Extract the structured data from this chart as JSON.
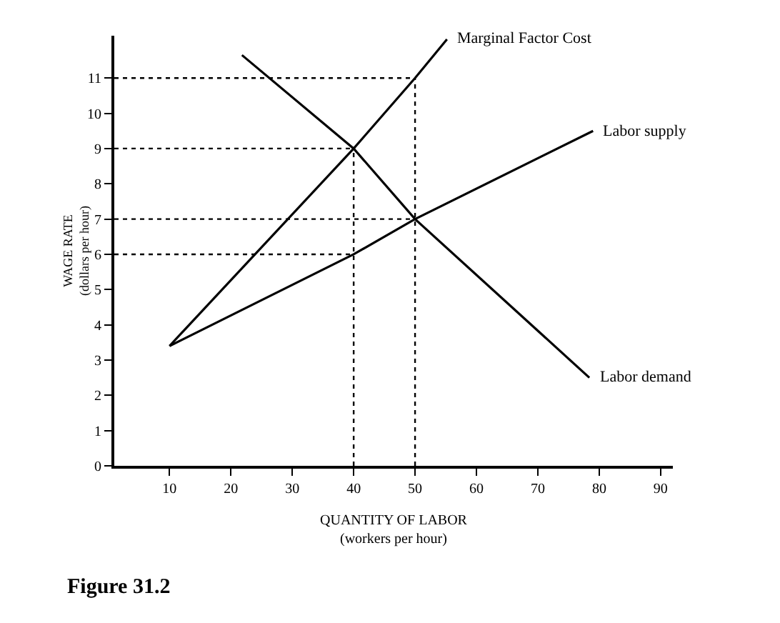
{
  "chart_data": {
    "type": "line",
    "xlabel": "QUANTITY OF LABOR\n(workers per hour)",
    "ylabel": "WAGE RATE\n(dollars per hour)",
    "annotations": [
      "Figure 31.2"
    ],
    "xlim": [
      1,
      92
    ],
    "xticks": [
      10,
      20,
      30,
      40,
      50,
      60,
      70,
      80,
      90
    ],
    "ylim": [
      0,
      12.2
    ],
    "yticks": [
      0,
      1,
      2,
      3,
      4,
      5,
      6,
      7,
      8,
      9,
      10,
      11
    ],
    "grid": false,
    "legend": false,
    "marker": "none",
    "line_style": "solid",
    "series": [
      {
        "name": "Marginal Factor Cost",
        "color": "#000000",
        "x": [
          10,
          40,
          50,
          55.2
        ],
        "values": [
          3.4,
          9,
          11,
          12.1
        ]
      },
      {
        "name": "Labor supply",
        "color": "#000000",
        "x": [
          10,
          40,
          50,
          79
        ],
        "values": [
          3.4,
          6,
          7,
          9.5
        ]
      },
      {
        "name": "Labor demand",
        "color": "#000000",
        "x": [
          21.8,
          40,
          50,
          78.4
        ],
        "values": [
          11.65,
          9,
          7,
          2.5
        ]
      },
      {
        "color": "#000000",
        "line_style": "dotted",
        "x": [
          1,
          50
        ],
        "values": [
          11,
          11
        ]
      },
      {
        "color": "#000000",
        "line_style": "dotted",
        "x": [
          1,
          40
        ],
        "values": [
          9,
          9
        ]
      },
      {
        "color": "#000000",
        "line_style": "dotted",
        "x": [
          1,
          50
        ],
        "values": [
          7,
          7
        ]
      },
      {
        "color": "#000000",
        "line_style": "dotted",
        "x": [
          1,
          40
        ],
        "values": [
          6,
          6
        ]
      },
      {
        "color": "#000000",
        "line_style": "dotted",
        "x": [
          40,
          40
        ],
        "values": [
          0,
          9
        ]
      },
      {
        "color": "#000000",
        "line_style": "dotted",
        "x": [
          50,
          50
        ],
        "values": [
          0,
          11
        ]
      }
    ]
  }
}
